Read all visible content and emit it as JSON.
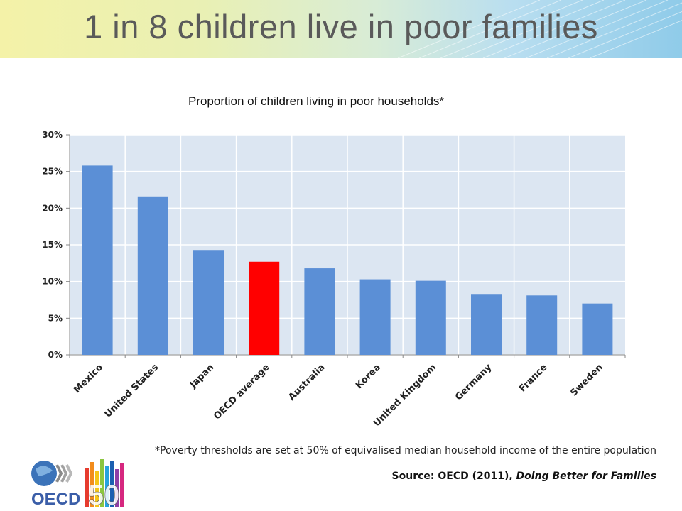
{
  "slide": {
    "title": "1 in 8 children live in poor families",
    "footnote": "*Poverty thresholds are set at 50% of equivalised median household income of the entire population",
    "source_prefix": "Source: OECD (2011), ",
    "source_title": "Doing Better for Families",
    "logo_text": "OECD",
    "logo_number": "50"
  },
  "colors": {
    "bar": "#5b8fd6",
    "highlight": "#ff0000",
    "plot_bg": "#dce6f2",
    "grid": "#ffffff"
  },
  "chart_data": {
    "type": "bar",
    "title": "Proportion of children living in poor households*",
    "categories": [
      "Mexico",
      "United States",
      "Japan",
      "OECD average",
      "Australia",
      "Korea",
      "United Kingdom",
      "Germany",
      "France",
      "Sweden"
    ],
    "values": [
      25.8,
      21.6,
      14.3,
      12.7,
      11.8,
      10.3,
      10.1,
      8.3,
      8.1,
      7.0
    ],
    "highlight": "OECD average",
    "y_ticks": [
      "0%",
      "5%",
      "10%",
      "15%",
      "20%",
      "25%",
      "30%"
    ],
    "ylim": [
      0,
      30
    ],
    "grid": true,
    "xlabel": "",
    "ylabel": ""
  }
}
